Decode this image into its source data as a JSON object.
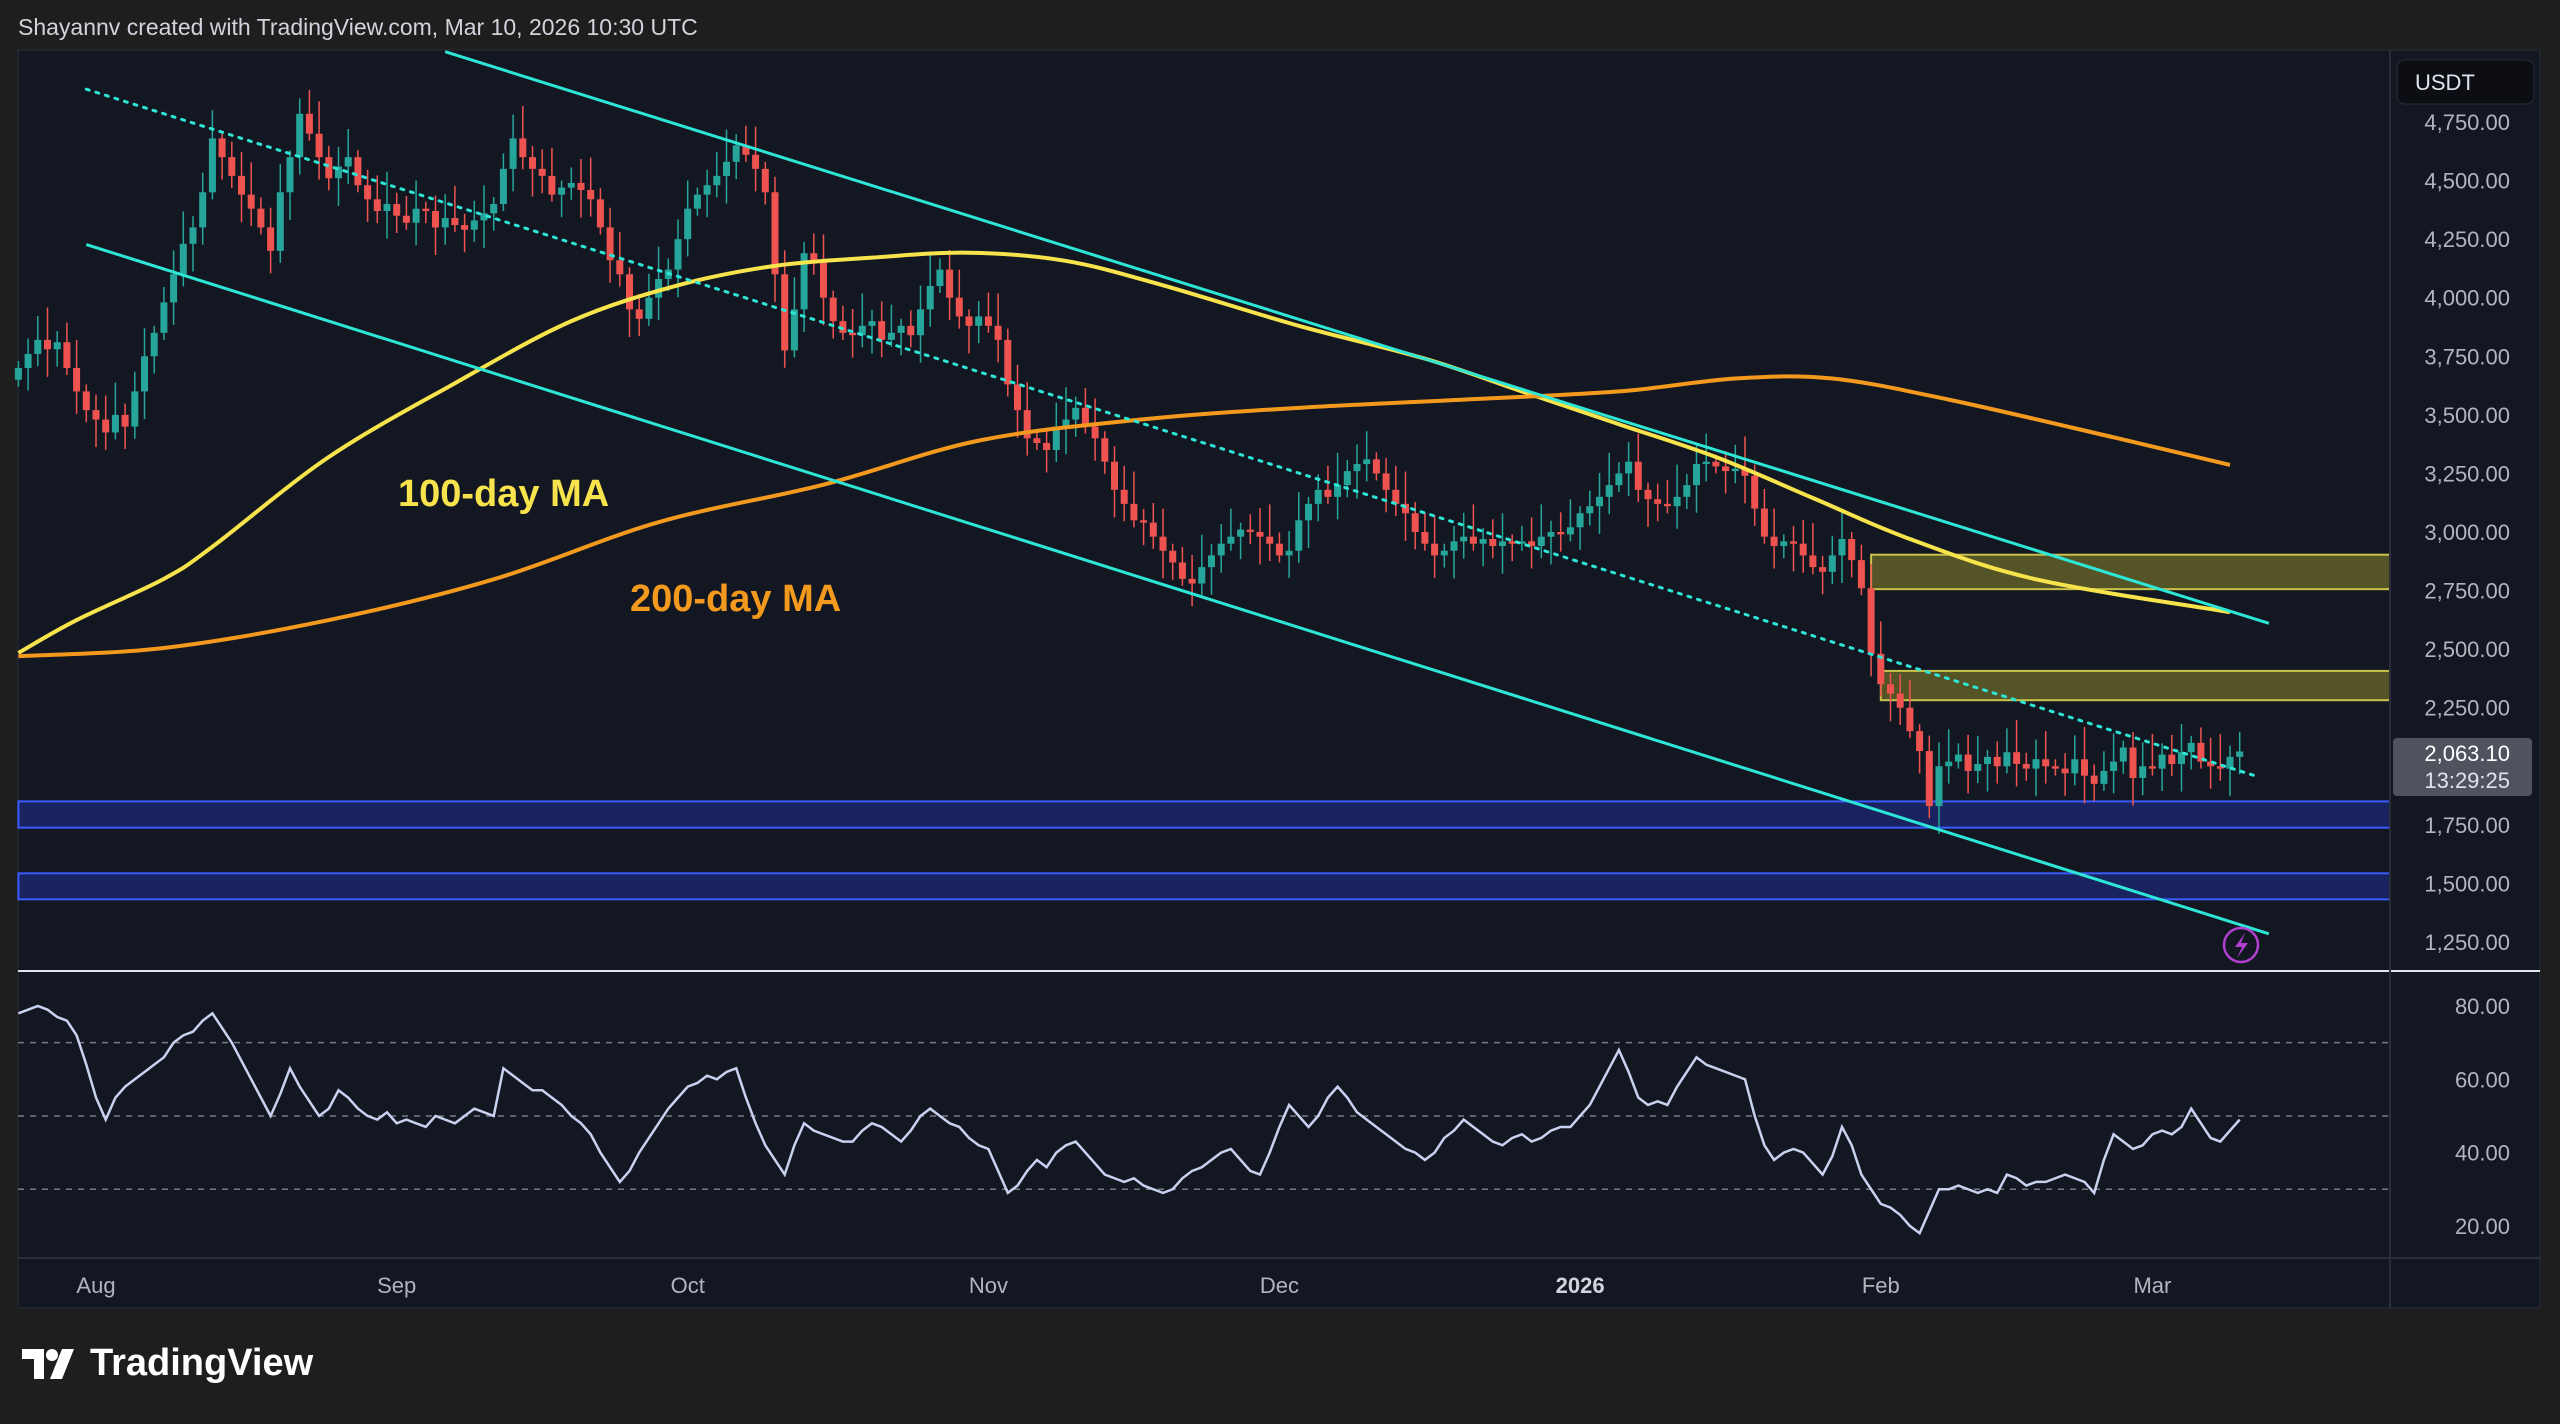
{
  "caption": "Shayannv created with TradingView.com, Mar 10, 2026 10:30 UTC",
  "brand": "TradingView",
  "currency": "USDT",
  "last_price": "2,063.10",
  "countdown": "13:29:25",
  "colors": {
    "up": "#26a69a",
    "down": "#ef5350",
    "ma100": "#f7e34b",
    "ma200": "#f39a1e",
    "trend": "#2ee6d6",
    "zone_yellow": "#6b6a2a",
    "zone_blue": "#1b2a7a",
    "rsi": "#c8d2f0",
    "background": "#131722"
  },
  "annotations": {
    "ma100_label": "100-day MA",
    "ma200_label": "200-day MA"
  },
  "chart_data": [
    {
      "type": "candlestick",
      "first_date": "2025-07-24",
      "ylim": [
        1150,
        4900
      ],
      "price_ticks": [
        "4,750.00",
        "4,500.00",
        "4,250.00",
        "4,000.00",
        "3,750.00",
        "3,500.00",
        "3,250.00",
        "3,000.00",
        "2,750.00",
        "2,500.00",
        "2,250.00",
        "1,750.00",
        "1,500.00",
        "1,250.00"
      ],
      "price_tick_values": [
        4750,
        4500,
        4250,
        4000,
        3750,
        3500,
        3250,
        3000,
        2750,
        2500,
        2250,
        1750,
        1500,
        1250
      ],
      "time_ticks": [
        {
          "date": "2025-08-01",
          "label": "Aug"
        },
        {
          "date": "2025-09-01",
          "label": "Sep"
        },
        {
          "date": "2025-10-01",
          "label": "Oct"
        },
        {
          "date": "2025-11-01",
          "label": "Nov"
        },
        {
          "date": "2025-12-01",
          "label": "Dec"
        },
        {
          "date": "2026-01-01",
          "label": "2026",
          "bold": true
        },
        {
          "date": "2026-02-01",
          "label": "Feb"
        },
        {
          "date": "2026-03-01",
          "label": "Mar"
        }
      ],
      "closes": [
        3700,
        3760,
        3820,
        3780,
        3810,
        3700,
        3600,
        3520,
        3480,
        3425,
        3500,
        3450,
        3600,
        3750,
        3850,
        3980,
        4100,
        4230,
        4300,
        4450,
        4680,
        4600,
        4520,
        4440,
        4380,
        4300,
        4200,
        4450,
        4600,
        4785,
        4700,
        4600,
        4510,
        4560,
        4600,
        4480,
        4420,
        4370,
        4400,
        4350,
        4320,
        4380,
        4370,
        4300,
        4340,
        4310,
        4290,
        4330,
        4360,
        4400,
        4550,
        4680,
        4600,
        4550,
        4520,
        4440,
        4470,
        4490,
        4460,
        4420,
        4300,
        4160,
        4100,
        3950,
        3910,
        4000,
        4080,
        4120,
        4250,
        4380,
        4440,
        4480,
        4520,
        4580,
        4650,
        4610,
        4550,
        4450,
        4100,
        3775,
        3950,
        4190,
        4150,
        4000,
        3900,
        3850,
        3840,
        3880,
        3900,
        3820,
        3850,
        3880,
        3840,
        3950,
        4050,
        4120,
        4000,
        3920,
        3880,
        3920,
        3880,
        3820,
        3630,
        3520,
        3400,
        3380,
        3350,
        3450,
        3480,
        3530,
        3450,
        3400,
        3300,
        3180,
        3120,
        3050,
        3040,
        2980,
        2920,
        2870,
        2800,
        2780,
        2850,
        2900,
        2950,
        2980,
        3010,
        3000,
        2980,
        2950,
        2900,
        2920,
        3050,
        3120,
        3180,
        3150,
        3200,
        3260,
        3290,
        3310,
        3250,
        3180,
        3120,
        3080,
        3000,
        2950,
        2900,
        2920,
        2960,
        2980,
        2950,
        2970,
        2940,
        2960,
        2950,
        2960,
        2940,
        2980,
        3000,
        2990,
        3020,
        3080,
        3110,
        3150,
        3200,
        3250,
        3300,
        3180,
        3140,
        3120,
        3110,
        3150,
        3200,
        3290,
        3300,
        3280,
        3260,
        3270,
        3240,
        3100,
        2980,
        2940,
        2960,
        2950,
        2900,
        2850,
        2830,
        2900,
        2970,
        2880,
        2760,
        2480,
        2350,
        2310,
        2250,
        2150,
        2065,
        1830,
        2000,
        2020,
        2050,
        1980,
        2010,
        2040,
        2000,
        2060,
        2010,
        1990,
        2030,
        2000,
        1990,
        1970,
        2030,
        1960,
        1925,
        1980,
        2020,
        2080,
        1950,
        2000,
        1990,
        2050,
        2010,
        2060,
        2100,
        2020,
        2000,
        1990,
        2040,
        2063
      ],
      "moving_averages": [
        {
          "name": "100-day MA",
          "points": [
            [
              "2025-07-24",
              2484
            ],
            [
              "2025-07-30",
              2624
            ],
            [
              "2025-08-08",
              2800
            ],
            [
              "2025-08-13",
              2937
            ],
            [
              "2025-08-25",
              3320
            ],
            [
              "2025-09-07",
              3635
            ],
            [
              "2025-09-19",
              3900
            ],
            [
              "2025-09-30",
              4053
            ],
            [
              "2025-10-10",
              4136
            ],
            [
              "2025-10-20",
              4171
            ],
            [
              "2025-10-30",
              4192
            ],
            [
              "2025-11-09",
              4157
            ],
            [
              "2025-11-19",
              4053
            ],
            [
              "2025-12-03",
              3880
            ],
            [
              "2025-12-16",
              3740
            ],
            [
              "2025-12-26",
              3600
            ],
            [
              "2026-01-05",
              3460
            ],
            [
              "2026-01-15",
              3320
            ],
            [
              "2026-01-25",
              3145
            ],
            [
              "2026-02-04",
              2970
            ],
            [
              "2026-02-17",
              2798
            ],
            [
              "2026-03-09",
              2658
            ]
          ]
        },
        {
          "name": "200-day MA",
          "points": [
            [
              "2025-07-24",
              2470
            ],
            [
              "2025-08-08",
              2505
            ],
            [
              "2025-08-25",
              2624
            ],
            [
              "2025-09-11",
              2798
            ],
            [
              "2025-09-28",
              3042
            ],
            [
              "2025-10-15",
              3202
            ],
            [
              "2025-10-31",
              3390
            ],
            [
              "2025-11-17",
              3481
            ],
            [
              "2025-12-03",
              3530
            ],
            [
              "2025-12-20",
              3565
            ],
            [
              "2026-01-05",
              3600
            ],
            [
              "2026-01-17",
              3655
            ],
            [
              "2026-01-27",
              3655
            ],
            [
              "2026-02-08",
              3565
            ],
            [
              "2026-02-25",
              3404
            ],
            [
              "2026-03-09",
              3286
            ]
          ]
        }
      ],
      "trendlines": [
        {
          "style": "solid",
          "from": [
            "2025-09-06",
            5050
          ],
          "to": [
            "2026-03-13",
            2610
          ]
        },
        {
          "style": "solid",
          "from": [
            "2025-07-31",
            4227
          ],
          "to": [
            "2026-03-13",
            1285
          ]
        },
        {
          "style": "dotted",
          "from": [
            "2025-07-31",
            4890
          ],
          "to": [
            "2026-03-12",
            1954
          ]
        }
      ],
      "zones": [
        {
          "color": "yellow",
          "from_date": "2026-01-31",
          "low": 2756,
          "high": 2903
        },
        {
          "color": "yellow",
          "from_date": "2026-02-01",
          "low": 2282,
          "high": 2407
        },
        {
          "color": "blue",
          "from_date": "2025-07-24",
          "low": 1738,
          "high": 1850
        },
        {
          "color": "blue",
          "from_date": "2025-07-24",
          "low": 1432,
          "high": 1543
        }
      ]
    },
    {
      "type": "line",
      "ylim": [
        10,
        90
      ],
      "ticks": [
        "80.00",
        "60.00",
        "40.00",
        "20.00"
      ],
      "tick_values": [
        80,
        60,
        40,
        20
      ],
      "levels": [
        70,
        50,
        30
      ],
      "values": [
        78,
        79,
        80,
        79,
        77,
        76,
        72,
        64,
        55,
        49,
        55,
        58,
        60,
        62,
        64,
        66,
        70,
        72,
        73,
        76,
        78,
        74,
        70,
        65,
        60,
        55,
        50,
        56,
        63,
        58,
        54,
        50,
        52,
        57,
        55,
        52,
        50,
        49,
        51,
        48,
        49,
        48,
        47,
        50,
        49,
        48,
        50,
        52,
        51,
        50,
        63,
        61,
        59,
        57,
        57,
        55,
        53,
        50,
        48,
        45,
        40,
        36,
        32,
        35,
        40,
        44,
        48,
        52,
        55,
        58,
        59,
        61,
        60,
        62,
        63,
        55,
        48,
        42,
        38,
        34,
        42,
        48,
        46,
        45,
        44,
        43,
        43,
        46,
        48,
        47,
        45,
        43,
        46,
        50,
        52,
        50,
        48,
        47,
        44,
        42,
        41,
        35,
        29,
        31,
        35,
        38,
        36,
        40,
        42,
        43,
        40,
        37,
        34,
        33,
        32,
        33,
        31,
        30,
        29,
        30,
        33,
        35,
        36,
        38,
        40,
        41,
        38,
        35,
        34,
        40,
        47,
        53,
        50,
        47,
        50,
        55,
        58,
        55,
        51,
        49,
        47,
        45,
        43,
        41,
        40,
        38,
        40,
        44,
        46,
        49,
        47,
        45,
        43,
        42,
        44,
        45,
        43,
        44,
        46,
        47,
        47,
        50,
        53,
        58,
        63,
        68,
        62,
        55,
        53,
        54,
        53,
        58,
        62,
        66,
        64,
        63,
        62,
        61,
        60,
        50,
        42,
        38,
        40,
        41,
        40,
        37,
        34,
        39,
        47,
        42,
        34,
        30,
        26,
        25,
        23,
        20,
        18,
        24,
        30,
        30,
        31,
        30,
        29,
        30,
        29,
        34,
        33,
        31,
        32,
        32,
        33,
        34,
        33,
        32,
        29,
        38,
        45,
        43,
        41,
        42,
        45,
        46,
        45,
        47,
        52,
        48,
        44,
        43,
        46,
        49
      ]
    }
  ]
}
